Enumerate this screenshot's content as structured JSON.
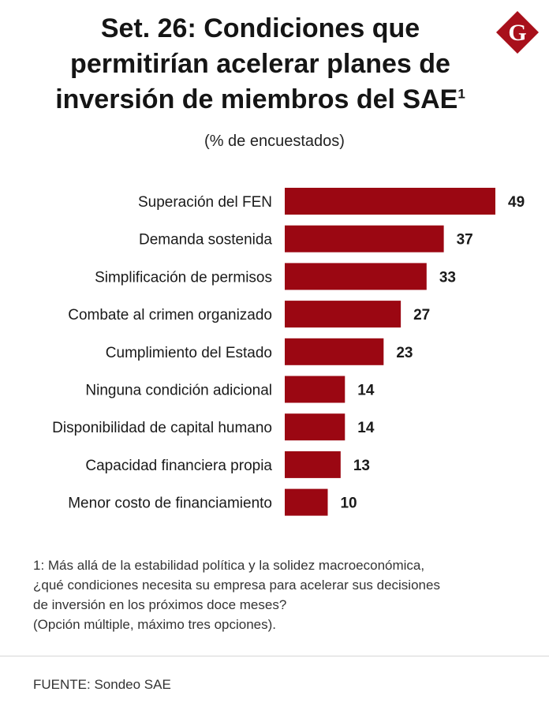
{
  "header": {
    "title_lines": [
      "Set. 26: Condiciones que",
      "permitirían acelerar planes de",
      "inversión de miembros del SAE"
    ],
    "title_superscript": "1",
    "subtitle": "(% de encuestados)",
    "logo_letter": "G"
  },
  "chart_data": {
    "type": "bar",
    "orientation": "horizontal",
    "categories": [
      "Superación del FEN",
      "Demanda sostenida",
      "Simplificación de permisos",
      "Combate al crimen organizado",
      "Cumplimiento del Estado",
      "Ninguna condición adicional",
      "Disponibilidad de capital humano",
      "Capacidad financiera propia",
      "Menor costo de financiamiento"
    ],
    "values": [
      49,
      37,
      33,
      27,
      23,
      14,
      14,
      13,
      10
    ],
    "xlim": [
      0,
      49
    ],
    "grid": false,
    "legend": "none",
    "data_labels": true
  },
  "colors": {
    "bar": "#9b0712",
    "logo": "#a8101b",
    "text": "#1a1a1a"
  },
  "footnote": {
    "lines": [
      "1: Más allá de la estabilidad política y la solidez macroeconómica,",
      "¿qué condiciones necesita su empresa para acelerar sus decisiones",
      "de inversión en los próximos doce meses?",
      "(Opción múltiple, máximo tres opciones)."
    ]
  },
  "source": "FUENTE: Sondeo SAE"
}
